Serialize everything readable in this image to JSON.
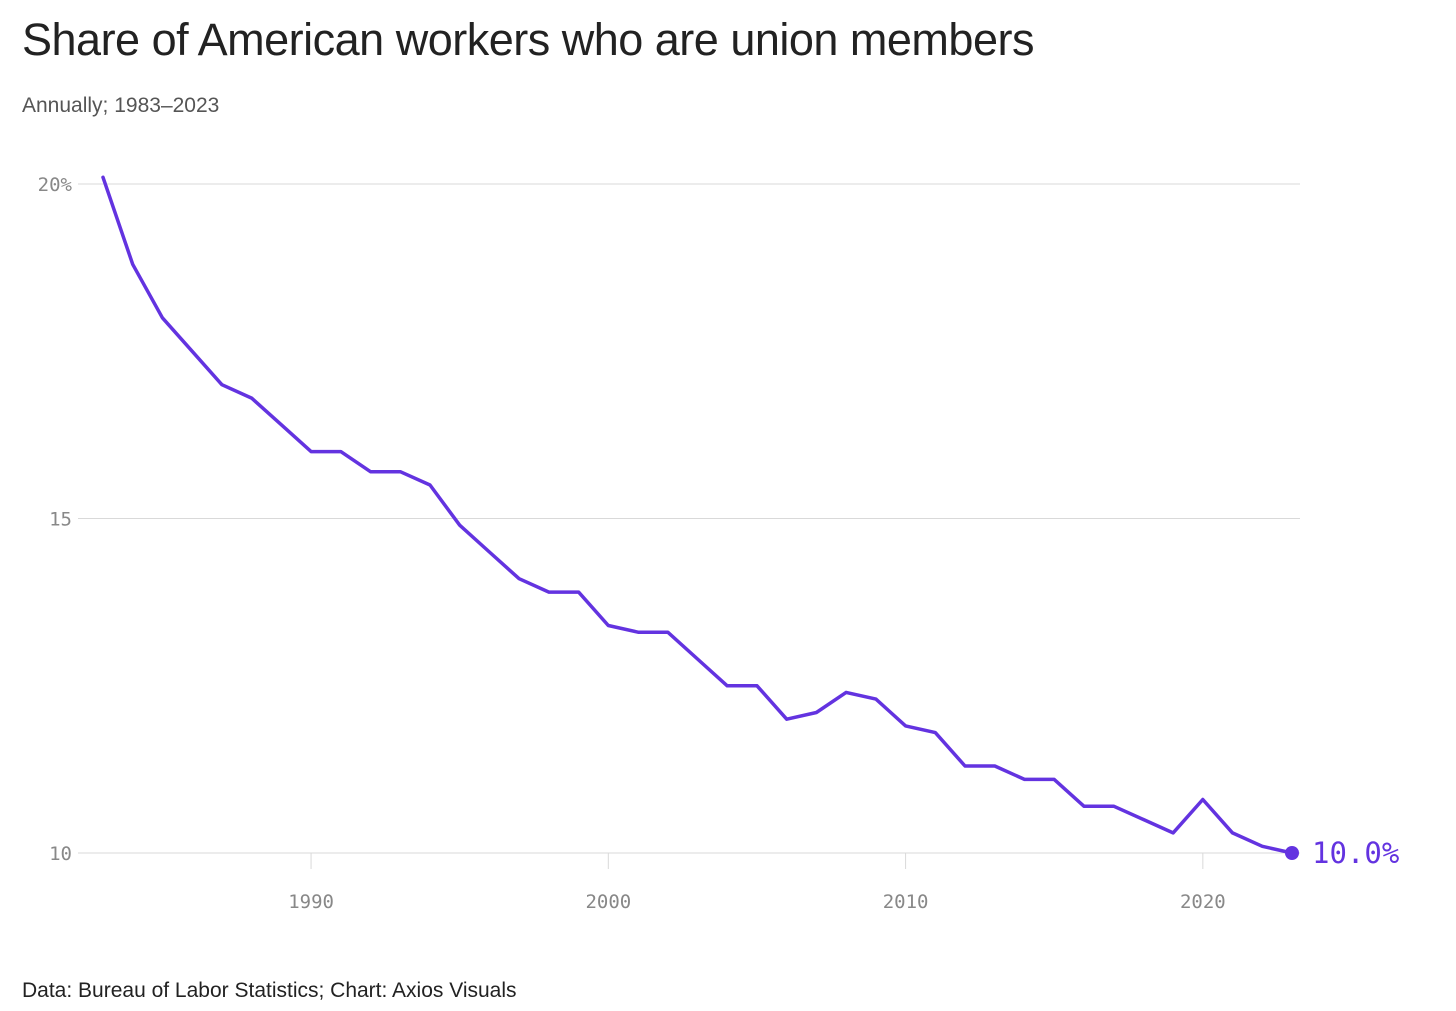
{
  "header": {
    "title": "Share of American workers who are union members",
    "subtitle": "Annually; 1983–2023"
  },
  "footer": {
    "source": "Data: Bureau of Labor Statistics; Chart: Axios Visuals"
  },
  "colors": {
    "line": "#6333e0",
    "grid": "#d9d9d9",
    "tick_text": "#888888"
  },
  "chart_data": {
    "type": "line",
    "title": "Share of American workers who are union members",
    "subtitle": "Annually; 1983–2023",
    "xlabel": "",
    "ylabel": "",
    "xlim": [
      1983,
      2023
    ],
    "ylim": [
      10,
      20
    ],
    "grid": "horizontal",
    "legend": "none",
    "y_ticks": [
      {
        "value": 20,
        "label": "20%"
      },
      {
        "value": 15,
        "label": "15"
      },
      {
        "value": 10,
        "label": "10"
      }
    ],
    "x_ticks": [
      {
        "value": 1990,
        "label": "1990"
      },
      {
        "value": 2000,
        "label": "2000"
      },
      {
        "value": 2010,
        "label": "2010"
      },
      {
        "value": 2020,
        "label": "2020"
      }
    ],
    "end_label": "10.0%",
    "series": [
      {
        "x": [
          1983,
          1984,
          1985,
          1986,
          1987,
          1988,
          1989,
          1990,
          1991,
          1992,
          1993,
          1994,
          1995,
          1996,
          1997,
          1998,
          1999,
          2000,
          2001,
          2002,
          2003,
          2004,
          2005,
          2006,
          2007,
          2008,
          2009,
          2010,
          2011,
          2012,
          2013,
          2014,
          2015,
          2016,
          2017,
          2018,
          2019,
          2020,
          2021,
          2022,
          2023
        ],
        "values": [
          20.1,
          18.8,
          18.0,
          17.5,
          17.0,
          16.8,
          16.4,
          16.0,
          16.0,
          15.7,
          15.7,
          15.5,
          14.9,
          14.5,
          14.1,
          13.9,
          13.9,
          13.4,
          13.3,
          13.3,
          12.9,
          12.5,
          12.5,
          12.0,
          12.1,
          12.4,
          12.3,
          11.9,
          11.8,
          11.3,
          11.3,
          11.1,
          11.1,
          10.7,
          10.7,
          10.5,
          10.3,
          10.8,
          10.3,
          10.1,
          10.0
        ]
      }
    ]
  }
}
